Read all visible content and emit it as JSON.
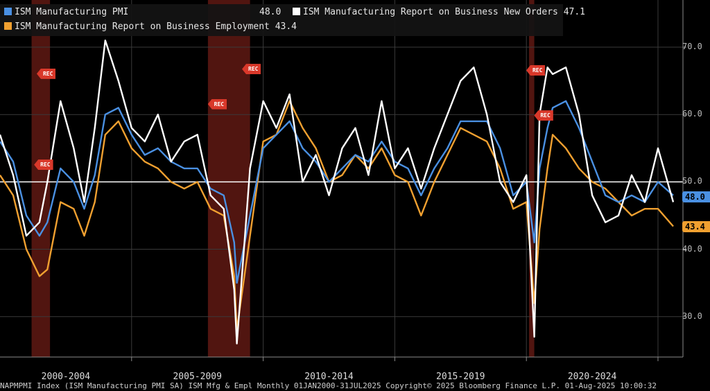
{
  "legend": {
    "pmi": {
      "label": "ISM Manufacturing PMI",
      "value": "48.0",
      "color": "#4a90e2"
    },
    "new_orders": {
      "label": "ISM Manufacturing Report on Business New Orders",
      "value": "47.1",
      "color": "#ffffff"
    },
    "employment": {
      "label": "ISM Manufacturing Report on Business Employment",
      "value": "43.4",
      "color": "#f0a030"
    }
  },
  "last_value_tags": {
    "pmi": "48.0",
    "employment": "43.4"
  },
  "footer": "NAPMPMI Index (ISM Manufacturing PMI SA) ISM Mfg & Empl  Monthly 01JAN2000-31JUL2025 Copyright© 2025 Bloomberg Finance L.P. 01-Aug-2025 10:00:32",
  "recession_label": "REC",
  "chart_data": {
    "type": "line",
    "title": "",
    "xlabel": "",
    "ylabel": "",
    "x_range": [
      2000.0,
      2025.58
    ],
    "ylim": [
      24,
      77
    ],
    "y_ticks": [
      30.0,
      40.0,
      50.0,
      60.0,
      70.0
    ],
    "y_tick_labels": [
      "30.0",
      "40.0",
      "50.0",
      "60.0",
      "70.0"
    ],
    "reference_line": 50,
    "x_tick_labels": [
      "2000-2004",
      "2005-2009",
      "2010-2014",
      "2015-2019",
      "2020-2024"
    ],
    "x_tick_centers": [
      2002.5,
      2007.5,
      2012.5,
      2017.5,
      2022.5
    ],
    "x_boundaries": [
      2005,
      2010,
      2015,
      2020,
      2025
    ],
    "recessions": [
      [
        2001.2,
        2001.9
      ],
      [
        2007.9,
        2009.5
      ],
      [
        2020.1,
        2020.3
      ]
    ],
    "series": [
      {
        "name": "ISM Manufacturing PMI",
        "color": "#4a90e2",
        "x": [
          2000.0,
          2000.5,
          2001.0,
          2001.5,
          2001.8,
          2002.3,
          2002.8,
          2003.2,
          2003.6,
          2004.0,
          2004.5,
          2005.0,
          2005.5,
          2006.0,
          2006.5,
          2007.0,
          2007.5,
          2008.0,
          2008.5,
          2008.9,
          2009.0,
          2009.5,
          2010.0,
          2010.5,
          2011.0,
          2011.5,
          2012.0,
          2012.5,
          2013.0,
          2013.5,
          2014.0,
          2014.5,
          2015.0,
          2015.5,
          2016.0,
          2016.5,
          2017.0,
          2017.5,
          2018.0,
          2018.5,
          2019.0,
          2019.5,
          2020.0,
          2020.3,
          2020.5,
          2020.8,
          2021.0,
          2021.5,
          2022.0,
          2022.5,
          2023.0,
          2023.5,
          2024.0,
          2024.5,
          2025.0,
          2025.58
        ],
        "values": [
          56,
          53,
          45,
          42,
          44,
          52,
          50,
          46,
          51,
          60,
          61,
          57,
          54,
          55,
          53,
          52,
          52,
          49,
          48,
          41,
          35,
          45,
          55,
          57,
          59,
          55,
          53,
          50,
          52,
          54,
          53,
          56,
          53,
          52,
          48,
          52,
          55,
          59,
          59,
          59,
          55,
          48,
          50,
          41,
          52,
          58,
          61,
          62,
          58,
          53,
          48,
          47,
          48,
          47,
          50,
          48
        ]
      },
      {
        "name": "ISM Manufacturing Report on Business New Orders",
        "color": "#ffffff",
        "x": [
          2000.0,
          2000.5,
          2001.0,
          2001.5,
          2001.8,
          2002.3,
          2002.8,
          2003.2,
          2003.6,
          2004.0,
          2004.5,
          2005.0,
          2005.5,
          2006.0,
          2006.5,
          2007.0,
          2007.5,
          2008.0,
          2008.5,
          2008.9,
          2009.0,
          2009.5,
          2010.0,
          2010.5,
          2011.0,
          2011.5,
          2012.0,
          2012.5,
          2013.0,
          2013.5,
          2014.0,
          2014.5,
          2015.0,
          2015.5,
          2016.0,
          2016.5,
          2017.0,
          2017.5,
          2018.0,
          2018.5,
          2019.0,
          2019.5,
          2020.0,
          2020.3,
          2020.5,
          2020.8,
          2021.0,
          2021.5,
          2022.0,
          2022.5,
          2023.0,
          2023.5,
          2024.0,
          2024.5,
          2025.0,
          2025.58
        ],
        "values": [
          57,
          51,
          42,
          44,
          50,
          62,
          55,
          47,
          58,
          71,
          65,
          58,
          56,
          60,
          53,
          56,
          57,
          48,
          46,
          34,
          26,
          52,
          62,
          58,
          63,
          50,
          54,
          48,
          55,
          58,
          51,
          62,
          52,
          55,
          49,
          55,
          60,
          65,
          67,
          60,
          50,
          47,
          51,
          27,
          60,
          67,
          66,
          67,
          60,
          48,
          44,
          45,
          51,
          47,
          55,
          47
        ]
      },
      {
        "name": "ISM Manufacturing Report on Business Employment",
        "color": "#f0a030",
        "x": [
          2000.0,
          2000.5,
          2001.0,
          2001.5,
          2001.8,
          2002.3,
          2002.8,
          2003.2,
          2003.6,
          2004.0,
          2004.5,
          2005.0,
          2005.5,
          2006.0,
          2006.5,
          2007.0,
          2007.5,
          2008.0,
          2008.5,
          2008.9,
          2009.0,
          2009.5,
          2010.0,
          2010.5,
          2011.0,
          2011.5,
          2012.0,
          2012.5,
          2013.0,
          2013.5,
          2014.0,
          2014.5,
          2015.0,
          2015.5,
          2016.0,
          2016.5,
          2017.0,
          2017.5,
          2018.0,
          2018.5,
          2019.0,
          2019.5,
          2020.0,
          2020.3,
          2020.5,
          2020.8,
          2021.0,
          2021.5,
          2022.0,
          2022.5,
          2023.0,
          2023.5,
          2024.0,
          2024.5,
          2025.0,
          2025.58
        ],
        "values": [
          51,
          48,
          40,
          36,
          37,
          47,
          46,
          42,
          47,
          57,
          59,
          55,
          53,
          52,
          50,
          49,
          50,
          46,
          45,
          36,
          28,
          42,
          56,
          57,
          62,
          58,
          55,
          50,
          51,
          54,
          52,
          55,
          51,
          50,
          45,
          50,
          54,
          58,
          57,
          56,
          52,
          46,
          47,
          32,
          43,
          52,
          57,
          55,
          52,
          50,
          49,
          47,
          45,
          46,
          46,
          43.4
        ]
      }
    ]
  }
}
